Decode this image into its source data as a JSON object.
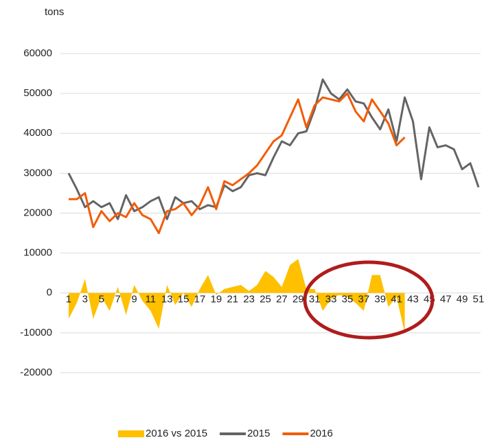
{
  "chart_data": {
    "type": "line",
    "y_label": "tons",
    "categories": [
      "1",
      null,
      "3",
      null,
      "5",
      null,
      "7",
      null,
      "9",
      null,
      "11",
      null,
      "13",
      null,
      "15",
      null,
      "17",
      null,
      "19",
      null,
      "21",
      null,
      "23",
      null,
      "25",
      null,
      "27",
      null,
      "29",
      null,
      "31",
      null,
      "33",
      null,
      "35",
      null,
      "37",
      null,
      "39",
      null,
      "41",
      null,
      "43",
      null,
      "45",
      null,
      "47",
      null,
      "49",
      null,
      "51"
    ],
    "series": [
      {
        "name": "2016 vs 2015",
        "type": "area",
        "color": "#ffc000",
        "values": [
          -6500,
          -2500,
          3500,
          -6500,
          -1000,
          -4500,
          1500,
          -5500,
          2000,
          -2000,
          -4500,
          -9000,
          2000,
          -3000,
          0,
          -3500,
          1000,
          4500,
          -500,
          1000,
          1500,
          2000,
          500,
          2000,
          5500,
          4000,
          1500,
          7000,
          8500,
          1000,
          1000,
          -4500,
          -1500,
          -500,
          -1000,
          -2500,
          -4500,
          4500,
          4500,
          -3500,
          -1000,
          -10000,
          null,
          null,
          null,
          null,
          null,
          null,
          null,
          null,
          null
        ]
      },
      {
        "name": "2015",
        "type": "line",
        "color": "#646464",
        "values": [
          30000,
          26000,
          21500,
          23000,
          21500,
          22500,
          18500,
          24500,
          20500,
          21500,
          23000,
          24000,
          18500,
          24000,
          22500,
          23000,
          21000,
          22000,
          21500,
          27000,
          25500,
          26500,
          29500,
          30000,
          29500,
          34000,
          38000,
          37000,
          40000,
          40500,
          46000,
          53500,
          50000,
          48500,
          51000,
          48000,
          47500,
          44000,
          41000,
          46000,
          38000,
          49000,
          43000,
          28500,
          41500,
          36500,
          37000,
          36000,
          31000,
          32500,
          26500
        ]
      },
      {
        "name": "2016",
        "type": "line",
        "color": "#f25c05",
        "values": [
          23500,
          23500,
          25000,
          16500,
          20500,
          18000,
          20000,
          19000,
          22500,
          19500,
          18500,
          15000,
          20500,
          21000,
          22500,
          19500,
          22000,
          26500,
          21000,
          28000,
          27000,
          28500,
          30000,
          32000,
          35000,
          38000,
          39500,
          44000,
          48500,
          41500,
          47000,
          49000,
          48500,
          48000,
          50000,
          45500,
          43000,
          48500,
          45500,
          42500,
          37000,
          39000,
          null,
          null,
          null,
          null,
          null,
          null,
          null,
          null,
          null
        ]
      }
    ],
    "ylim": [
      -20000,
      60000
    ],
    "yticks": [
      -20000,
      -10000,
      0,
      10000,
      20000,
      30000,
      40000,
      50000,
      60000
    ],
    "grid": true,
    "legend": "bottom"
  }
}
